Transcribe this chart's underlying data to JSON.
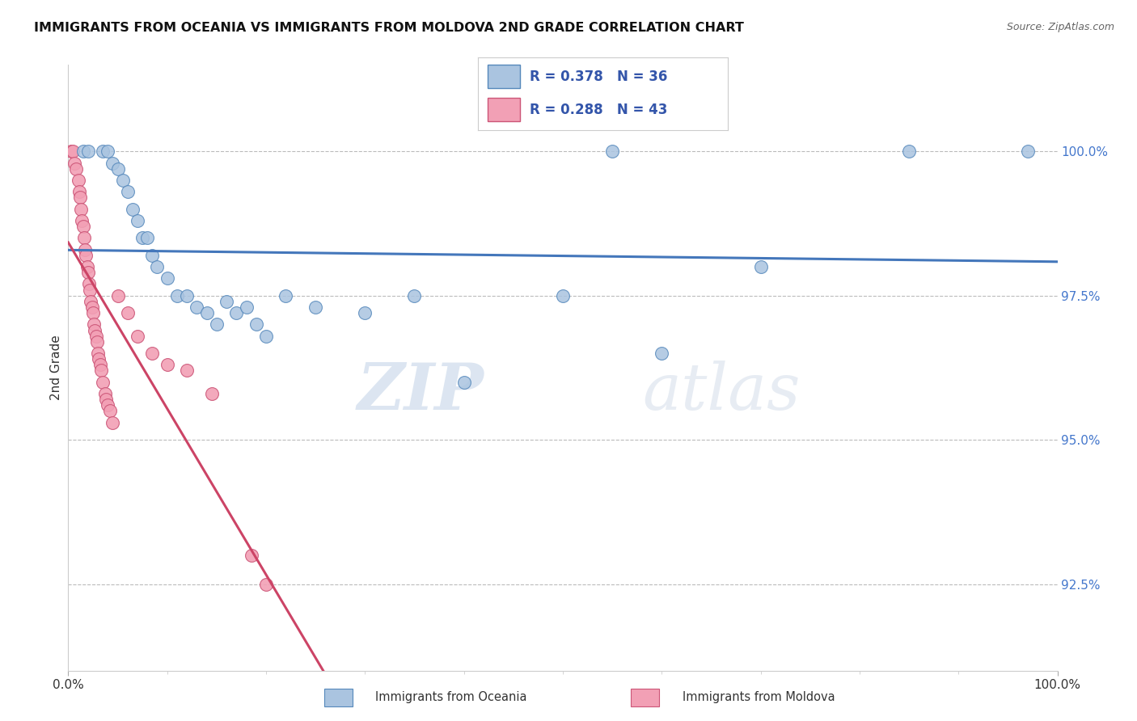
{
  "title": "IMMIGRANTS FROM OCEANIA VS IMMIGRANTS FROM MOLDOVA 2ND GRADE CORRELATION CHART",
  "source": "Source: ZipAtlas.com",
  "ylabel": "2nd Grade",
  "xlim": [
    0,
    100
  ],
  "ylim": [
    91.0,
    101.5
  ],
  "yticks": [
    92.5,
    95.0,
    97.5,
    100.0
  ],
  "ytick_labels": [
    "92.5%",
    "95.0%",
    "97.5%",
    "100.0%"
  ],
  "xticks": [
    0,
    100
  ],
  "xtick_labels": [
    "0.0%",
    "100.0%"
  ],
  "legend_r_oceania": "R = 0.378",
  "legend_n_oceania": "N = 36",
  "legend_r_moldova": "R = 0.288",
  "legend_n_moldova": "N = 43",
  "oceania_color": "#aac4e0",
  "moldova_color": "#f2a0b5",
  "oceania_edge_color": "#5588bb",
  "moldova_edge_color": "#cc5577",
  "oceania_line_color": "#4477bb",
  "moldova_line_color": "#cc4466",
  "background_color": "#ffffff",
  "oceania_x": [
    1.5,
    2.0,
    3.5,
    4.0,
    4.5,
    5.0,
    5.5,
    6.0,
    6.5,
    7.0,
    7.5,
    8.0,
    8.5,
    9.0,
    10.0,
    11.0,
    12.0,
    13.0,
    14.0,
    15.0,
    16.0,
    17.0,
    18.0,
    19.0,
    20.0,
    22.0,
    25.0,
    30.0,
    35.0,
    40.0,
    50.0,
    55.0,
    60.0,
    70.0,
    85.0,
    97.0
  ],
  "oceania_y": [
    100.0,
    100.0,
    100.0,
    100.0,
    99.8,
    99.7,
    99.5,
    99.3,
    99.0,
    98.8,
    98.5,
    98.5,
    98.2,
    98.0,
    97.8,
    97.5,
    97.5,
    97.3,
    97.2,
    97.0,
    97.4,
    97.2,
    97.3,
    97.0,
    96.8,
    97.5,
    97.3,
    97.2,
    97.5,
    96.0,
    97.5,
    100.0,
    96.5,
    98.0,
    100.0,
    100.0
  ],
  "moldova_x": [
    0.3,
    0.5,
    0.6,
    0.8,
    1.0,
    1.1,
    1.2,
    1.3,
    1.4,
    1.5,
    1.6,
    1.7,
    1.8,
    1.9,
    2.0,
    2.1,
    2.2,
    2.3,
    2.4,
    2.5,
    2.6,
    2.7,
    2.8,
    2.9,
    3.0,
    3.1,
    3.2,
    3.3,
    3.5,
    3.7,
    3.8,
    4.0,
    4.2,
    4.5,
    5.0,
    6.0,
    7.0,
    8.5,
    10.0,
    12.0,
    14.5,
    18.5,
    20.0
  ],
  "moldova_y": [
    100.0,
    100.0,
    99.8,
    99.7,
    99.5,
    99.3,
    99.2,
    99.0,
    98.8,
    98.7,
    98.5,
    98.3,
    98.2,
    98.0,
    97.9,
    97.7,
    97.6,
    97.4,
    97.3,
    97.2,
    97.0,
    96.9,
    96.8,
    96.7,
    96.5,
    96.4,
    96.3,
    96.2,
    96.0,
    95.8,
    95.7,
    95.6,
    95.5,
    95.3,
    97.5,
    97.2,
    96.8,
    96.5,
    96.3,
    96.2,
    95.8,
    93.0,
    92.5
  ]
}
